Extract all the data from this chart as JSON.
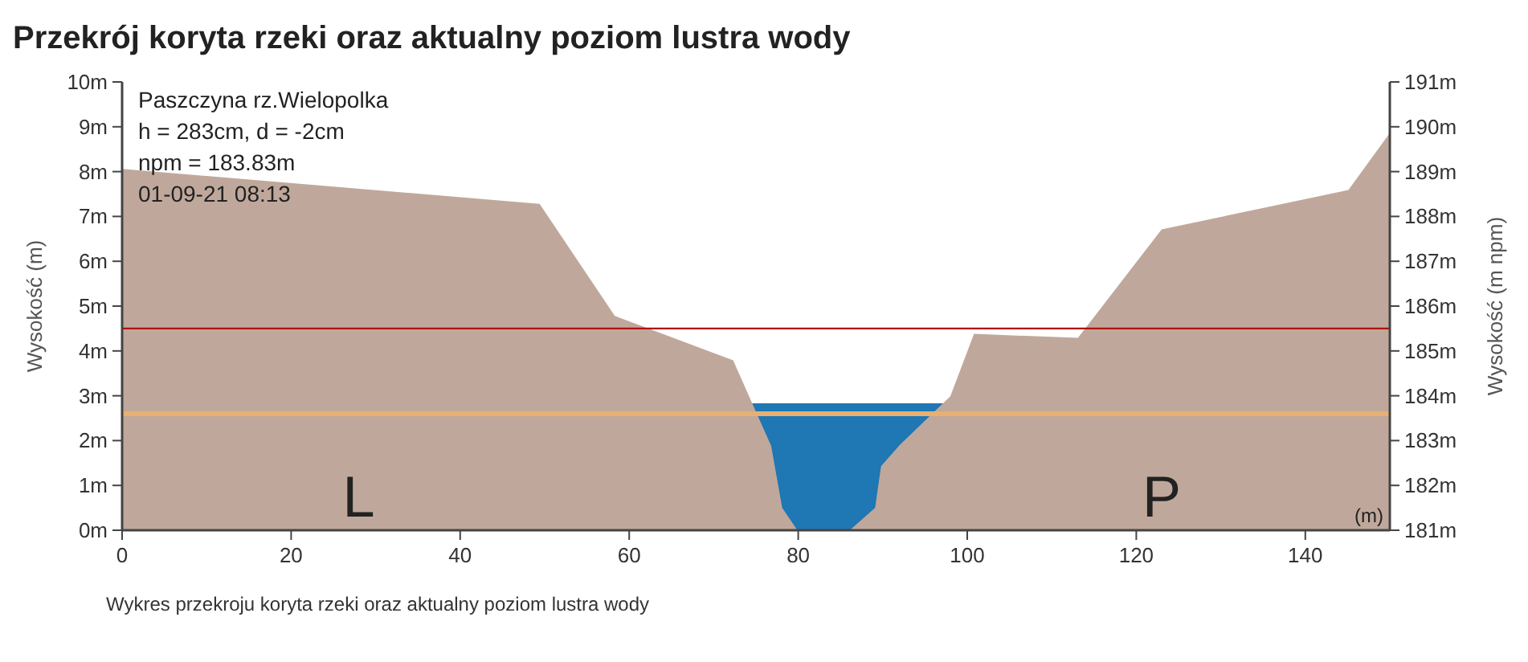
{
  "chart_data": {
    "type": "area",
    "title": "Przekrój koryta rzeki oraz aktualny poziom lustra wody",
    "ylabel": "Wysokość (m)",
    "y2label": "Wysokość (m npm)",
    "annotations": [
      "Paszczyna rz.Wielopolka",
      "h = 283cm, d = -2cm",
      "npm = 183.83m",
      "01-09-21 08:13",
      "L",
      "P",
      "(m)",
      "Wykres przekroju koryta rzeki oraz aktualny poziom lustra wody"
    ],
    "series": [
      {
        "color": "#1f77b4",
        "x": [
          74.5,
          97.2
        ],
        "values": [
          2.83,
          2.83
        ]
      },
      {
        "color": "#bfa89b",
        "x": [
          0,
          49.4,
          58.3,
          72.3,
          76.8,
          78.1,
          79.9,
          86.1,
          89.1,
          89.8,
          92,
          98,
          100.8,
          113.1,
          123,
          145.1,
          150
        ],
        "values": [
          8.06,
          7.28,
          4.78,
          3.79,
          1.88,
          0.5,
          0,
          0,
          0.5,
          1.43,
          1.9,
          2.99,
          4.38,
          4.29,
          6.71,
          7.59,
          8.86
        ]
      }
    ],
    "xlim": [
      0,
      150
    ],
    "xticks": [
      0,
      20,
      40,
      60,
      80,
      100,
      120,
      140
    ],
    "ylim": [
      0,
      10
    ],
    "yticks": [
      {
        "value": 0,
        "label": "0m"
      },
      {
        "value": 1,
        "label": "1m"
      },
      {
        "value": 2,
        "label": "2m"
      },
      {
        "value": 3,
        "label": "3m"
      },
      {
        "value": 4,
        "label": "4m"
      },
      {
        "value": 5,
        "label": "5m"
      },
      {
        "value": 6,
        "label": "6m"
      },
      {
        "value": 7,
        "label": "7m"
      },
      {
        "value": 8,
        "label": "8m"
      },
      {
        "value": 9,
        "label": "9m"
      },
      {
        "value": 10,
        "label": "10m"
      }
    ],
    "y2lim": [
      181,
      191
    ],
    "y2ticks": [
      {
        "value": 181,
        "label": "181m"
      },
      {
        "value": 182,
        "label": "182m"
      },
      {
        "value": 183,
        "label": "183m"
      },
      {
        "value": 184,
        "label": "184m"
      },
      {
        "value": 185,
        "label": "185m"
      },
      {
        "value": 186,
        "label": "186m"
      },
      {
        "value": 187,
        "label": "187m"
      },
      {
        "value": 188,
        "label": "188m"
      },
      {
        "value": 189,
        "label": "189m"
      },
      {
        "value": 190,
        "label": "190m"
      },
      {
        "value": 191,
        "label": "191m"
      }
    ],
    "ref_lines": [
      {
        "axis": "y",
        "value": 4.5,
        "color": "#b01010"
      },
      {
        "axis": "y",
        "value": 2.6,
        "color": "#e8b070"
      }
    ],
    "grid": false
  }
}
